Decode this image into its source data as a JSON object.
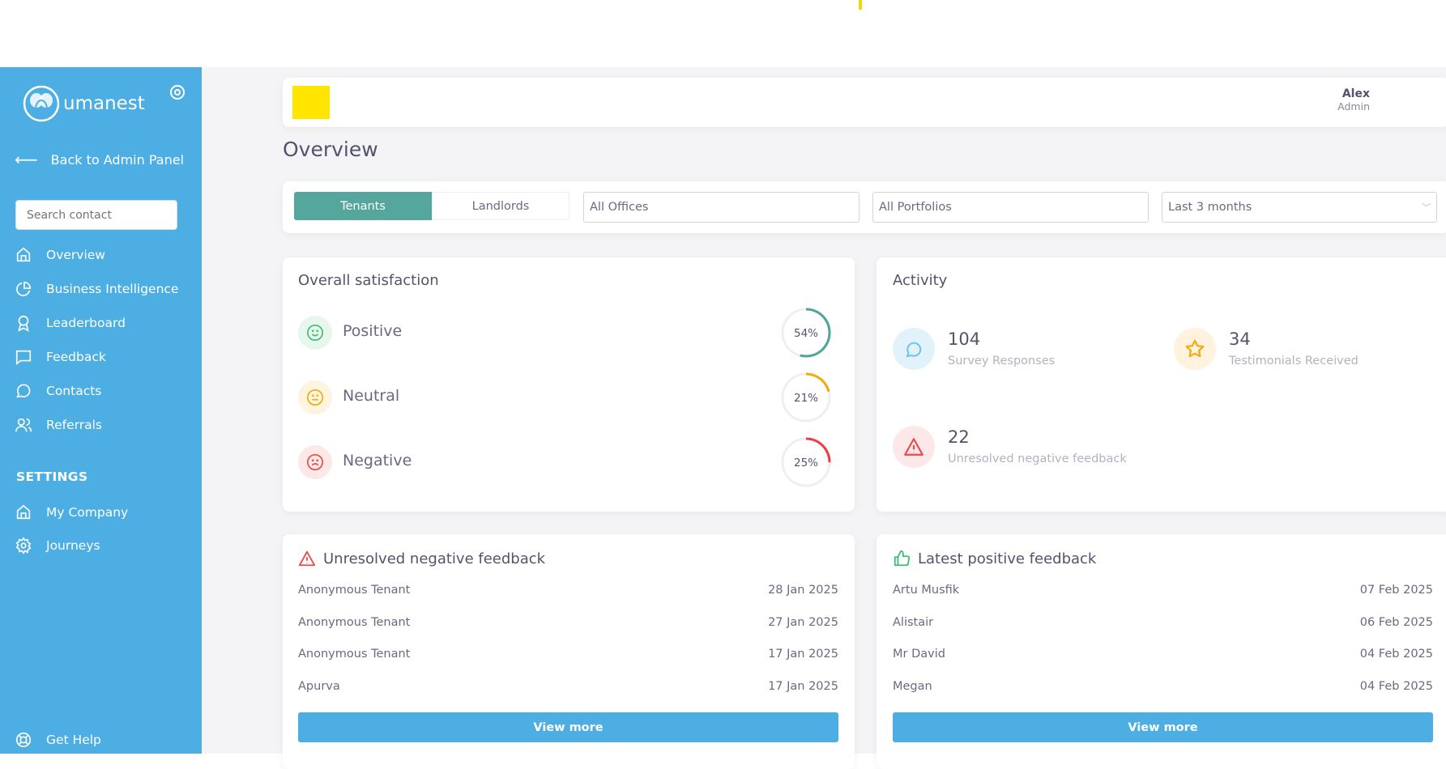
{
  "brand": {
    "name": "umanest"
  },
  "sidebar": {
    "back_label": "Back to Admin Panel",
    "search_placeholder": "Search contact",
    "items": [
      {
        "label": "Overview",
        "icon": "home-icon"
      },
      {
        "label": "Business Intelligence",
        "icon": "pie-chart-icon"
      },
      {
        "label": "Leaderboard",
        "icon": "award-icon"
      },
      {
        "label": "Feedback",
        "icon": "message-square-icon"
      },
      {
        "label": "Contacts",
        "icon": "message-circle-icon"
      },
      {
        "label": "Referrals",
        "icon": "users-icon"
      }
    ],
    "settings_heading": "SETTINGS",
    "settings_items": [
      {
        "label": "My Company",
        "icon": "home-icon"
      },
      {
        "label": "Journeys",
        "icon": "gear-icon"
      }
    ],
    "help_label": "Get Help"
  },
  "header": {
    "user_name": "Alex",
    "user_role": "Admin"
  },
  "page_title": "Overview",
  "filters": {
    "tabs": [
      "Tenants",
      "Landlords"
    ],
    "active_tab": "Tenants",
    "offices": "All Offices",
    "portfolios": "All Portfolios",
    "period": "Last 3 months"
  },
  "satisfaction": {
    "title": "Overall satisfaction",
    "items": [
      {
        "label": "Positive",
        "value": 54,
        "text": "54%",
        "color": "#4fa59a",
        "bg": "#e8f7ee",
        "icon_color": "#3fbf73"
      },
      {
        "label": "Neutral",
        "value": 21,
        "text": "21%",
        "color": "#f5a90a",
        "bg": "#fff4e0",
        "icon_color": "#f5a90a"
      },
      {
        "label": "Negative",
        "value": 25,
        "text": "25%",
        "color": "#ee3d43",
        "bg": "#fde8e8",
        "icon_color": "#e94b4b"
      }
    ]
  },
  "activity": {
    "title": "Activity",
    "survey": {
      "value": "104",
      "label": "Survey Responses"
    },
    "testimonials": {
      "value": "34",
      "label": "Testimonials Received"
    },
    "unresolved": {
      "value": "22",
      "label": "Unresolved negative feedback"
    }
  },
  "negative_feedback": {
    "title": "Unresolved negative feedback",
    "rows": [
      {
        "name": "Anonymous Tenant",
        "date": "28 Jan 2025"
      },
      {
        "name": "Anonymous Tenant",
        "date": "27 Jan 2025"
      },
      {
        "name": "Anonymous Tenant",
        "date": "17 Jan 2025"
      },
      {
        "name": "Apurva",
        "date": "17 Jan 2025"
      }
    ],
    "button": "View more"
  },
  "positive_feedback": {
    "title": "Latest positive feedback",
    "rows": [
      {
        "name": "Artu Musfik",
        "date": "07 Feb 2025"
      },
      {
        "name": "Alistair",
        "date": "06 Feb 2025"
      },
      {
        "name": "Mr David",
        "date": "04 Feb 2025"
      },
      {
        "name": "Megan",
        "date": "04 Feb 2025"
      }
    ],
    "button": "View more"
  }
}
